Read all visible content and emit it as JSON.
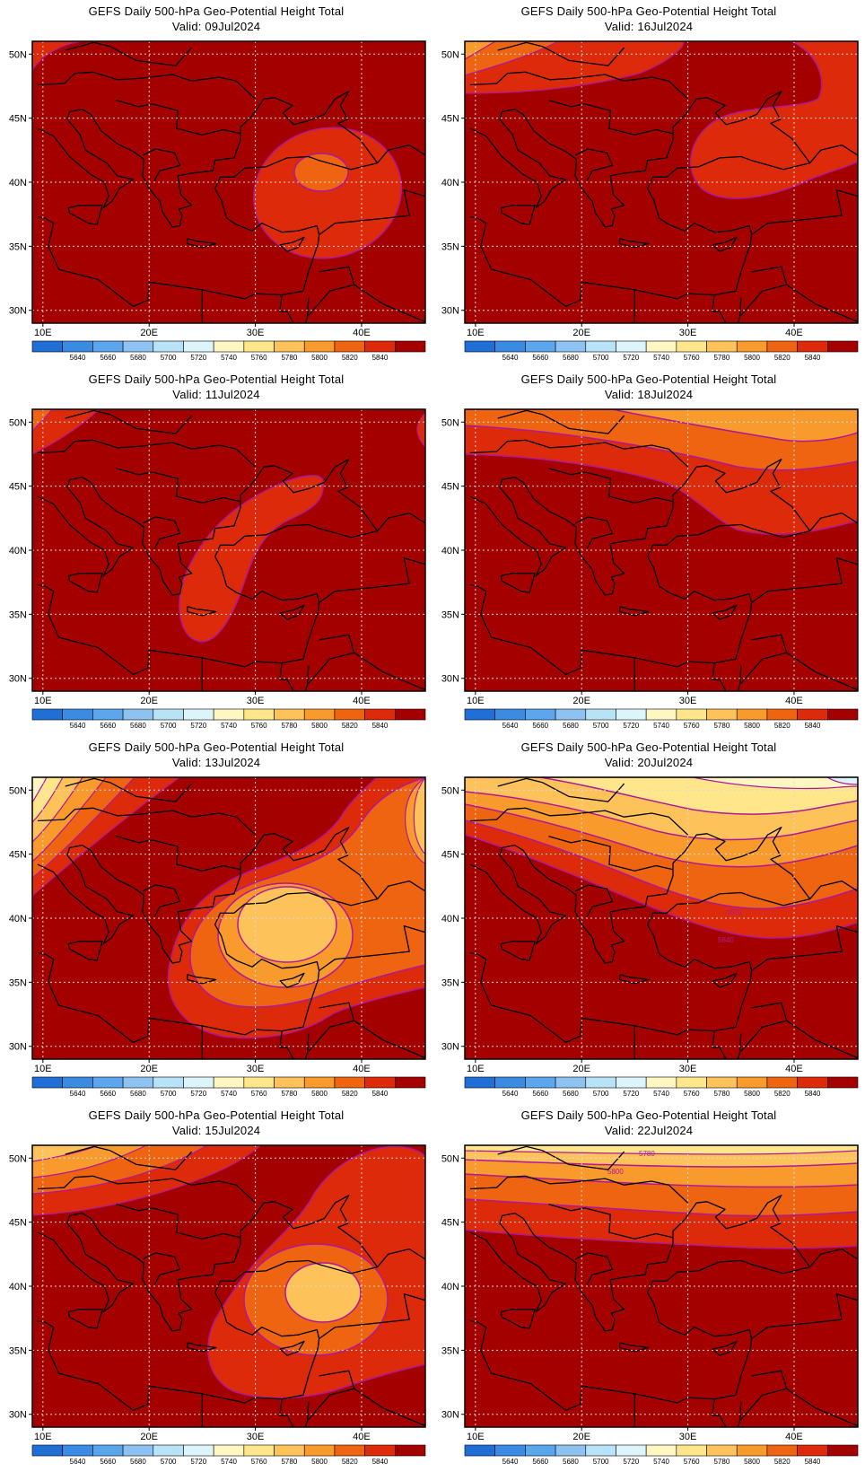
{
  "figure": {
    "title_line1": "GEFS Daily 500-hPa Geo-Potential Height Total",
    "valid_prefix": "Valid: "
  },
  "axes": {
    "lat_labels": [
      "50N",
      "45N",
      "40N",
      "35N",
      "30N"
    ],
    "lat_values": [
      50,
      45,
      40,
      35,
      30
    ],
    "lon_labels": [
      "10E",
      "20E",
      "30E",
      "40E"
    ],
    "lon_values": [
      10,
      20,
      30,
      40
    ],
    "lon_range": [
      9,
      46
    ],
    "lat_range": [
      29,
      51
    ],
    "grid": "dotted"
  },
  "colorbar": {
    "colors": [
      "#1f6fd6",
      "#3b8be3",
      "#5ca6ee",
      "#8ec2f0",
      "#b8e2f6",
      "#dbf5fb",
      "#fff7c2",
      "#ffe68a",
      "#fdc35a",
      "#f99a2c",
      "#ee6410",
      "#dc2a0a",
      "#a50000"
    ],
    "labels": [
      "5640",
      "5660",
      "5680",
      "5700",
      "5720",
      "5740",
      "5760",
      "5780",
      "5800",
      "5820",
      "5840"
    ],
    "contour_color": "#b0189a"
  },
  "panels": [
    {
      "id": "p1",
      "title": "GEFS Daily 500-hPa Geo-Potential Height Total",
      "valid": "Valid: 09Jul2024"
    },
    {
      "id": "p2",
      "title": "GEFS Daily 500-hPa Geo-Potential Height Total",
      "valid": "Valid: 16Jul2024"
    },
    {
      "id": "p3",
      "title": "GEFS Daily 500-hPa Geo-Potential Height Total",
      "valid": "Valid: 11Jul2024"
    },
    {
      "id": "p4",
      "title": "GEFS Daily 500-hPa Geo-Potential Height Total",
      "valid": "Valid: 18Jul2024"
    },
    {
      "id": "p5",
      "title": "GEFS Daily 500-hPa Geo-Potential Height Total",
      "valid": "Valid: 13Jul2024"
    },
    {
      "id": "p6",
      "title": "GEFS Daily 500-hPa Geo-Potential Height Total",
      "valid": "Valid: 20Jul2024",
      "contour_labels": [
        "5820",
        "5840"
      ]
    },
    {
      "id": "p7",
      "title": "GEFS Daily 500-hPa Geo-Potential Height Total",
      "valid": "Valid: 15Jul2024"
    },
    {
      "id": "p8",
      "title": "GEFS Daily 500-hPa Geo-Potential Height Total",
      "valid": "Valid: 22Jul2024",
      "contour_labels": [
        "5780",
        "5800"
      ]
    }
  ]
}
